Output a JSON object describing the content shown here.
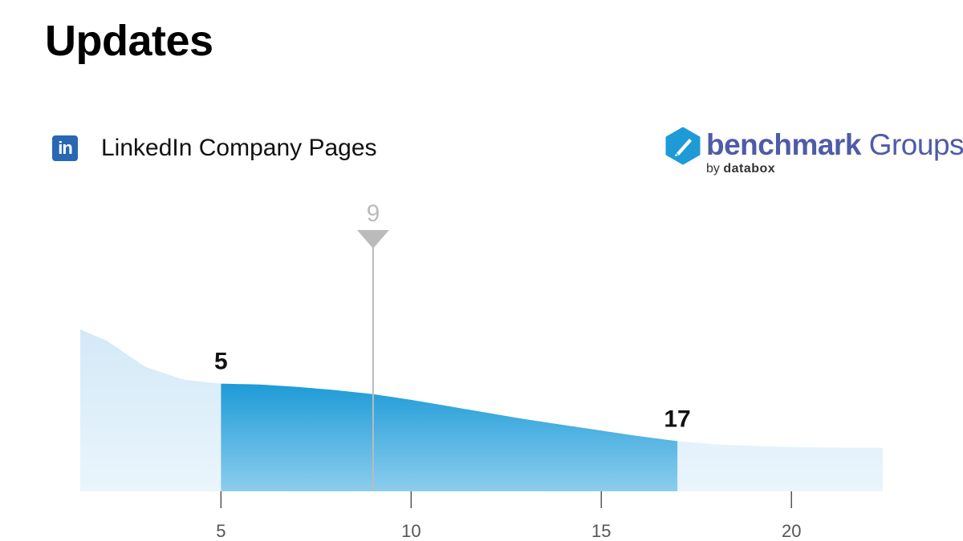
{
  "page": {
    "title": "Updates"
  },
  "source": {
    "icon": "linkedin-icon",
    "icon_text": "in",
    "label": "LinkedIn Company Pages"
  },
  "brand": {
    "icon": "benchmark-hexagon-logo-icon",
    "name_bold": "benchmark",
    "name_light": "Groups",
    "by": "by",
    "by_brand": "databox"
  },
  "colors": {
    "linkedin": "#2867B2",
    "brand_text": "#4F5BA8",
    "brand_hex": "#1E9BD7",
    "tail_fill": "#DCEEF9",
    "band_top": "#1E9BD7",
    "band_bottom": "#8CCDEE",
    "marker": "#BBBBBB",
    "axis": "#555555"
  },
  "chart_data": {
    "type": "area",
    "x": [
      1.3,
      2,
      3,
      4,
      5,
      6,
      7,
      8,
      9,
      10,
      11,
      12,
      13,
      14,
      15,
      16,
      17,
      18,
      19,
      20,
      21,
      22.4
    ],
    "y": [
      1.0,
      0.93,
      0.77,
      0.69,
      0.665,
      0.66,
      0.645,
      0.625,
      0.6,
      0.565,
      0.525,
      0.485,
      0.445,
      0.41,
      0.375,
      0.34,
      0.31,
      0.29,
      0.28,
      0.273,
      0.27,
      0.268
    ],
    "xlim": [
      1.3,
      22.4
    ],
    "xticks": [
      5,
      10,
      15,
      20
    ],
    "xtick_labels": [
      "5",
      "10",
      "15",
      "20"
    ],
    "band": {
      "low": 5,
      "high": 17,
      "low_label": "5",
      "high_label": "17"
    },
    "marker": {
      "value": 9,
      "label": "9"
    },
    "grid": false,
    "legend": "none"
  }
}
